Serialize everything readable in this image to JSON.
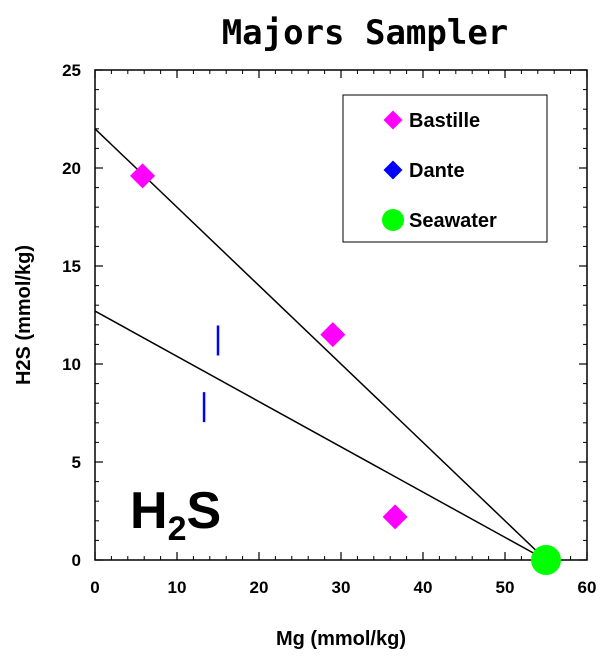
{
  "chart_data": {
    "type": "scatter",
    "title": "Majors Sampler",
    "xlabel": "Mg (mmol/kg)",
    "ylabel": "H2S (mmol/kg)",
    "xlim": [
      0,
      60
    ],
    "ylim": [
      0,
      25
    ],
    "x_ticks": [
      0,
      10,
      20,
      30,
      40,
      50,
      60
    ],
    "y_ticks": [
      0,
      5,
      10,
      15,
      20,
      25
    ],
    "grid": false,
    "legend_position": "top-right",
    "annotation": {
      "main": "H",
      "sub": "2",
      "tail": "S"
    },
    "series": [
      {
        "name": "Bastille",
        "marker": "diamond",
        "color": "#ff00ff",
        "points": [
          {
            "x": 5.8,
            "y": 19.6
          },
          {
            "x": 29.0,
            "y": 11.5
          },
          {
            "x": 36.6,
            "y": 2.2
          }
        ]
      },
      {
        "name": "Dante",
        "marker": "diamond",
        "color": "#0000ff",
        "points": [
          {
            "x": 13.3,
            "y": 7.8
          },
          {
            "x": 15.0,
            "y": 11.2
          }
        ]
      },
      {
        "name": "Seawater",
        "marker": "circle",
        "color": "#00ff00",
        "points": [
          {
            "x": 55.0,
            "y": 0.0
          }
        ]
      }
    ],
    "lines": [
      {
        "x1": 0,
        "y1": 22.0,
        "x2": 55.0,
        "y2": 0.0
      },
      {
        "x1": 0,
        "y1": 12.7,
        "x2": 55.0,
        "y2": 0.0
      }
    ]
  }
}
